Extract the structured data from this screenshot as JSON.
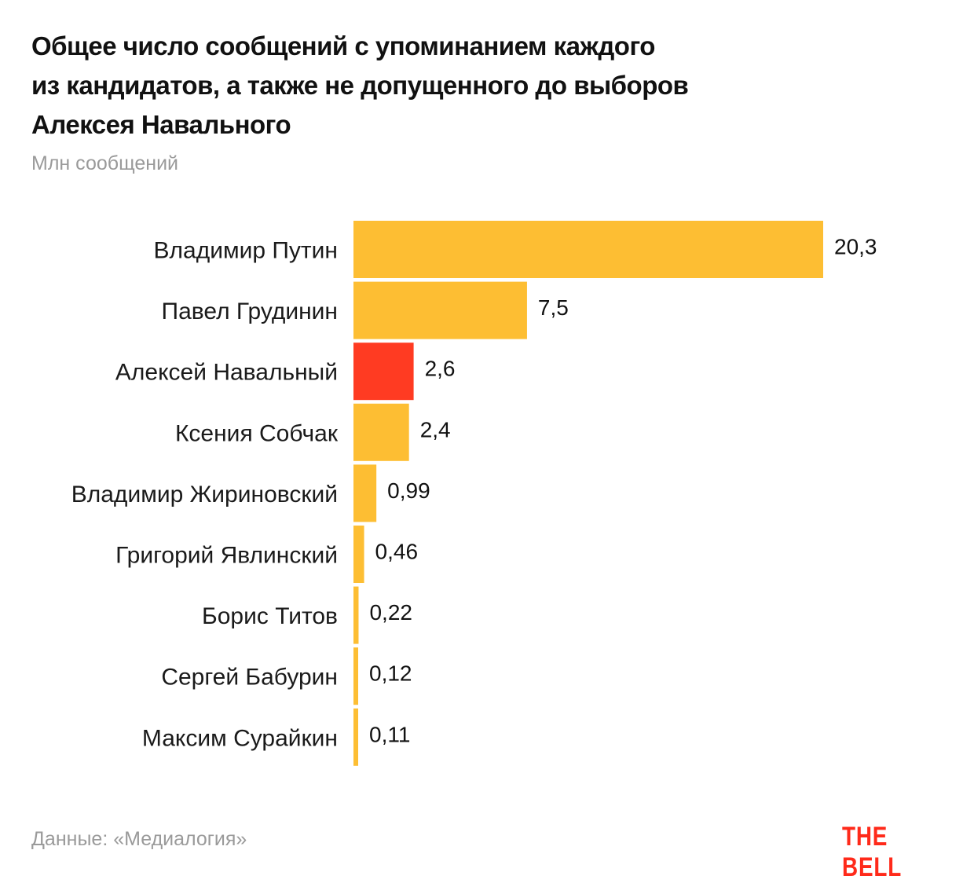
{
  "chart_data": {
    "type": "bar",
    "orientation": "horizontal",
    "title": "Общее число сообщений с упоминанием каждого из кандидатов, а также не допущенного до выборов Алексея Навального",
    "title_lines": [
      "Общее число сообщений с упоминанием каждого",
      "из кандидатов, а также не допущенного до выборов",
      "Алексея Навального"
    ],
    "subtitle": "Млн сообщений",
    "xlabel": "",
    "ylabel": "",
    "xlim": [
      0,
      20.3
    ],
    "grid": false,
    "categories": [
      "Владимир Путин",
      "Павел Грудинин",
      "Алексей Навальный",
      "Ксения Собчак",
      "Владимир Жириновский",
      "Григорий Явлинский",
      "Борис Титов",
      "Сергей Бабурин",
      "Максим Сурайкин"
    ],
    "values": [
      20.3,
      7.5,
      2.6,
      2.4,
      0.99,
      0.46,
      0.22,
      0.12,
      0.11
    ],
    "value_labels": [
      "20,3",
      "7,5",
      "2,6",
      "2,4",
      "0,99",
      "0,46",
      "0,22",
      "0,12",
      "0,11"
    ],
    "highlight_index": 2,
    "colors": {
      "default": "#FDBE33",
      "highlight": "#FF3B22"
    }
  },
  "footer": {
    "source": "Данные: «Медиалогия»",
    "logo": "THE BELL",
    "logo_color": "#FF2A1A"
  }
}
